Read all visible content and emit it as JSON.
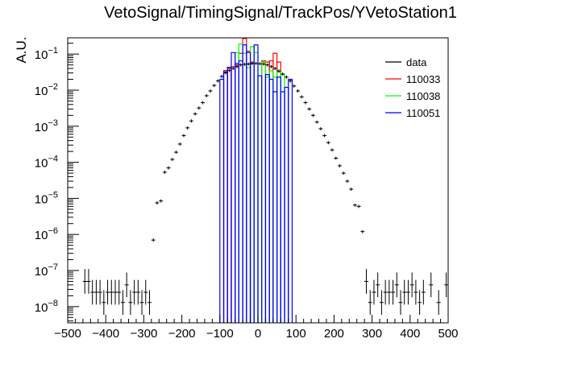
{
  "chart_data": {
    "type": "histogram",
    "title": "VetoSignal/TimingSignal/TrackPos/YVetoStation1",
    "ylabel": "A.U.",
    "xlabel": "",
    "xlim": [
      -500,
      500
    ],
    "ylim_log10": [
      -8.45,
      -0.55
    ],
    "log_y": true,
    "grid": false,
    "legend_position": "top-right",
    "x_ticks": [
      -500,
      -400,
      -300,
      -200,
      -100,
      0,
      100,
      200,
      300,
      400,
      500
    ],
    "x_tick_labels": [
      "−500",
      "−400",
      "−300",
      "−200",
      "−100",
      "0",
      "100",
      "200",
      "300",
      "400",
      "500"
    ],
    "y_ticks": [
      {
        "exp": -8,
        "base": "10",
        "sup": "−8"
      },
      {
        "exp": -7,
        "base": "10",
        "sup": "−7"
      },
      {
        "exp": -6,
        "base": "10",
        "sup": "−6"
      },
      {
        "exp": -5,
        "base": "10",
        "sup": "−5"
      },
      {
        "exp": -4,
        "base": "10",
        "sup": "−4"
      },
      {
        "exp": -3,
        "base": "10",
        "sup": "−3"
      },
      {
        "exp": -2,
        "base": "10",
        "sup": "−2"
      },
      {
        "exp": -1,
        "base": "10",
        "sup": "−1"
      }
    ],
    "data": {
      "name": "data",
      "color": "#000000",
      "points": [
        [
          -455,
          5e-08
        ],
        [
          -445,
          5e-08
        ],
        [
          -435,
          2.5e-08
        ],
        [
          -425,
          2.5e-08
        ],
        [
          -415,
          2.5e-08
        ],
        [
          -405,
          1.3e-08
        ],
        [
          -395,
          2.5e-08
        ],
        [
          -385,
          2.5e-08
        ],
        [
          -375,
          2.5e-08
        ],
        [
          -365,
          2.5e-08
        ],
        [
          -355,
          1.3e-08
        ],
        [
          -345,
          4e-08
        ],
        [
          -335,
          1.3e-08
        ],
        [
          -325,
          2.5e-08
        ],
        [
          -315,
          2.5e-08
        ],
        [
          -305,
          1.3e-08
        ],
        [
          -295,
          2.5e-08
        ],
        [
          -285,
          1.3e-08
        ],
        [
          -275,
          7e-07
        ],
        [
          -265,
          7.5e-06
        ],
        [
          -255,
          8.5e-06
        ],
        [
          -245,
          5.3e-05
        ],
        [
          -235,
          7e-05
        ],
        [
          -225,
          0.00012
        ],
        [
          -215,
          0.00019
        ],
        [
          -205,
          0.00032
        ],
        [
          -195,
          0.00055
        ],
        [
          -185,
          0.0009
        ],
        [
          -175,
          0.0014
        ],
        [
          -165,
          0.0022
        ],
        [
          -155,
          0.0032
        ],
        [
          -145,
          0.0045
        ],
        [
          -135,
          0.007
        ],
        [
          -125,
          0.0095
        ],
        [
          -115,
          0.0135
        ],
        [
          -105,
          0.018
        ],
        [
          -95,
          0.024
        ],
        [
          -85,
          0.03
        ],
        [
          -75,
          0.035
        ],
        [
          -65,
          0.04
        ],
        [
          -55,
          0.045
        ],
        [
          -45,
          0.05
        ],
        [
          -35,
          0.052
        ],
        [
          -25,
          0.053
        ],
        [
          -15,
          0.055
        ],
        [
          -5,
          0.055
        ],
        [
          5,
          0.054
        ],
        [
          15,
          0.053
        ],
        [
          25,
          0.05
        ],
        [
          35,
          0.045
        ],
        [
          45,
          0.04
        ],
        [
          55,
          0.034
        ],
        [
          65,
          0.028
        ],
        [
          75,
          0.023
        ],
        [
          85,
          0.018
        ],
        [
          95,
          0.013
        ],
        [
          105,
          0.0095
        ],
        [
          115,
          0.0065
        ],
        [
          125,
          0.0045
        ],
        [
          135,
          0.003
        ],
        [
          145,
          0.002
        ],
        [
          155,
          0.0013
        ],
        [
          165,
          0.00085
        ],
        [
          175,
          0.00055
        ],
        [
          185,
          0.00035
        ],
        [
          195,
          0.00022
        ],
        [
          205,
          0.00013
        ],
        [
          215,
          8e-05
        ],
        [
          225,
          5e-05
        ],
        [
          235,
          3e-05
        ],
        [
          245,
          1.8e-05
        ],
        [
          255,
          6.5e-06
        ],
        [
          265,
          6e-06
        ],
        [
          275,
          1.2e-06
        ],
        [
          285,
          5e-08
        ],
        [
          295,
          1.3e-08
        ],
        [
          305,
          2.5e-08
        ],
        [
          315,
          4e-08
        ],
        [
          325,
          1.3e-08
        ],
        [
          335,
          2.5e-08
        ],
        [
          345,
          2.5e-08
        ],
        [
          355,
          2.5e-08
        ],
        [
          365,
          4e-08
        ],
        [
          375,
          1.3e-08
        ],
        [
          385,
          2.5e-08
        ],
        [
          395,
          2.5e-08
        ],
        [
          405,
          4e-08
        ],
        [
          415,
          2.5e-08
        ],
        [
          425,
          1.3e-08
        ],
        [
          435,
          2.5e-08
        ],
        [
          455,
          4e-08
        ],
        [
          475,
          1.3e-08
        ],
        [
          495,
          4e-08
        ]
      ]
    },
    "series": [
      {
        "name": "110033",
        "color": "#ff0000",
        "bins": [
          {
            "x0": -90,
            "x1": -80,
            "y": 0.035
          },
          {
            "x0": -80,
            "x1": -70,
            "y": 0.04
          },
          {
            "x0": -70,
            "x1": -60,
            "y": 0.045
          },
          {
            "x0": -60,
            "x1": -50,
            "y": 0.05
          },
          {
            "x0": -50,
            "x1": -40,
            "y": 0.105
          },
          {
            "x0": -40,
            "x1": -30,
            "y": 0.27
          },
          {
            "x0": -30,
            "x1": -20,
            "y": 0.12
          },
          {
            "x0": -20,
            "x1": -10,
            "y": 0.06
          },
          {
            "x0": 10,
            "x1": 20,
            "y": 0.065
          },
          {
            "x0": 20,
            "x1": 30,
            "y": 0.06
          },
          {
            "x0": 30,
            "x1": 40,
            "y": 0.065
          },
          {
            "x0": 40,
            "x1": 50,
            "y": 0.105
          },
          {
            "x0": 50,
            "x1": 60,
            "y": 0.06
          }
        ]
      },
      {
        "name": "110038",
        "color": "#00ff00",
        "bins": [
          {
            "x0": -60,
            "x1": -50,
            "y": 0.11
          },
          {
            "x0": -50,
            "x1": -40,
            "y": 0.19
          },
          {
            "x0": -40,
            "x1": -30,
            "y": 0.105
          },
          {
            "x0": -30,
            "x1": -20,
            "y": 0.042
          },
          {
            "x0": -20,
            "x1": -10,
            "y": 0.16
          },
          {
            "x0": -10,
            "x1": 0,
            "y": 0.11
          },
          {
            "x0": 10,
            "x1": 20,
            "y": 0.06
          },
          {
            "x0": 20,
            "x1": 30,
            "y": 0.023
          },
          {
            "x0": 30,
            "x1": 40,
            "y": 0.034
          },
          {
            "x0": 40,
            "x1": 50,
            "y": 0.023
          },
          {
            "x0": 50,
            "x1": 60,
            "y": 0.032
          },
          {
            "x0": 60,
            "x1": 70,
            "y": 0.027
          }
        ]
      },
      {
        "name": "110051",
        "color": "#0000ff",
        "bins": [
          {
            "x0": -100,
            "x1": -90,
            "y": 0.02
          },
          {
            "x0": -90,
            "x1": -80,
            "y": 0.032
          },
          {
            "x0": -80,
            "x1": -70,
            "y": 0.043
          },
          {
            "x0": -70,
            "x1": -60,
            "y": 0.11
          },
          {
            "x0": -60,
            "x1": -50,
            "y": 0.055
          },
          {
            "x0": -50,
            "x1": -40,
            "y": 0.065
          },
          {
            "x0": -40,
            "x1": -30,
            "y": 0.18
          },
          {
            "x0": -30,
            "x1": -20,
            "y": 0.11
          },
          {
            "x0": -20,
            "x1": -10,
            "y": 0.055
          },
          {
            "x0": -10,
            "x1": 0,
            "y": 0.18
          },
          {
            "x0": 0,
            "x1": 10,
            "y": 0.025
          },
          {
            "x0": 20,
            "x1": 30,
            "y": 0.027
          },
          {
            "x0": 30,
            "x1": 40,
            "y": 0.02
          },
          {
            "x0": 40,
            "x1": 50,
            "y": 0.009
          },
          {
            "x0": 50,
            "x1": 60,
            "y": 0.023
          },
          {
            "x0": 60,
            "x1": 70,
            "y": 0.009
          },
          {
            "x0": 70,
            "x1": 80,
            "y": 0.012
          },
          {
            "x0": 80,
            "x1": 90,
            "y": 0.02
          }
        ]
      }
    ],
    "legend": [
      {
        "label": "data",
        "color": "#000000"
      },
      {
        "label": "110033",
        "color": "#ff0000"
      },
      {
        "label": "110038",
        "color": "#00ff00"
      },
      {
        "label": "110051",
        "color": "#0000ff"
      }
    ]
  }
}
